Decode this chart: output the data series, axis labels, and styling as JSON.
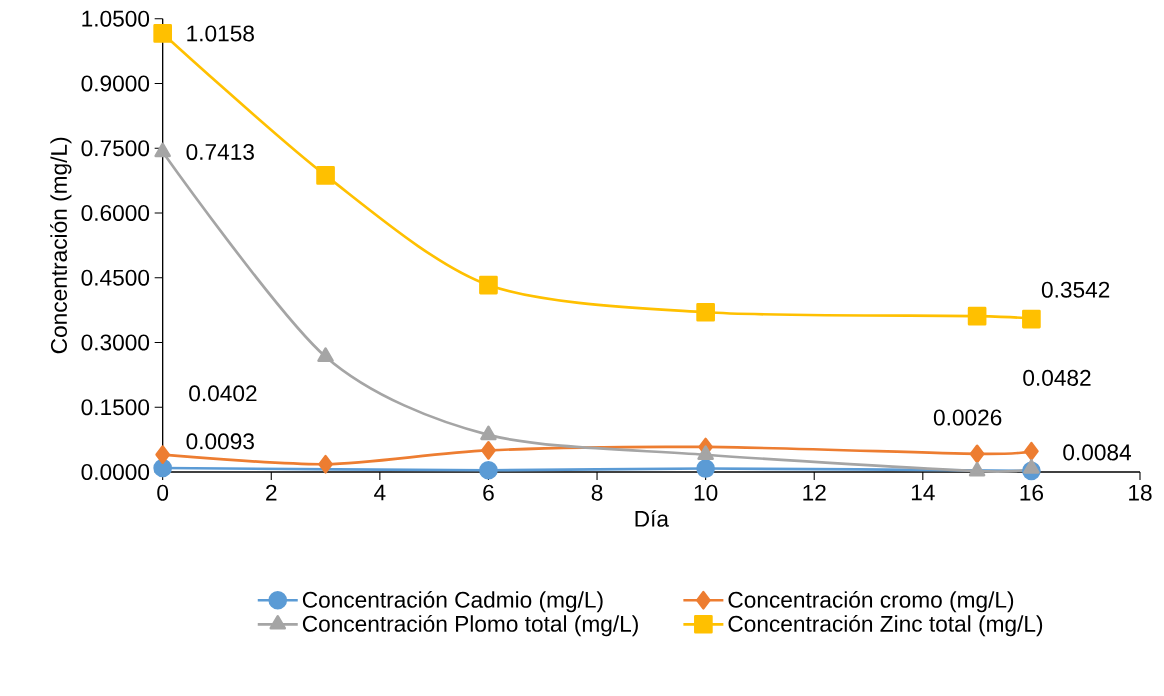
{
  "chart_data": {
    "type": "line",
    "xlabel": "Día",
    "ylabel": "Concentración (mg/L)",
    "x": [
      0,
      3,
      6,
      10,
      15,
      16
    ],
    "series": [
      {
        "name": "Concentración Cadmio (mg/L)",
        "color": "#5b9bd5",
        "marker": "circle",
        "values": [
          0.0093,
          null,
          0.004,
          0.008,
          null,
          0.0026
        ],
        "value_labels": [
          "0.0093",
          null,
          null,
          null,
          null,
          "0.0026"
        ]
      },
      {
        "name": "Concentración cromo (mg/L)",
        "color": "#ed7d31",
        "marker": "diamond",
        "values": [
          0.0402,
          0.018,
          0.05,
          0.058,
          0.042,
          0.0482
        ],
        "value_labels": [
          "0.0402",
          null,
          null,
          null,
          null,
          "0.0482"
        ]
      },
      {
        "name": "Concentración Plomo total (mg/L)",
        "color": "#a5a5a5",
        "marker": "triangle",
        "values": [
          0.7413,
          0.267,
          0.086,
          0.04,
          0.002,
          0.0084
        ],
        "value_labels": [
          "0.7413",
          null,
          null,
          null,
          null,
          "0.0084"
        ]
      },
      {
        "name": "Concentración Zinc total (mg/L)",
        "color": "#ffc000",
        "marker": "square",
        "values": [
          1.0158,
          0.687,
          0.433,
          0.37,
          0.361,
          0.3542
        ],
        "value_labels": [
          "1.0158",
          null,
          null,
          null,
          null,
          "0.3542"
        ]
      }
    ],
    "xlim": [
      0,
      18
    ],
    "xticks": [
      0,
      2,
      4,
      6,
      8,
      10,
      12,
      14,
      16,
      18
    ],
    "ylim": [
      0,
      1.05
    ],
    "yticks": [
      {
        "value": 0,
        "label": "0.0000"
      },
      {
        "value": 0.15,
        "label": "0.1500"
      },
      {
        "value": 0.3,
        "label": "0.3000"
      },
      {
        "value": 0.45,
        "label": "0.4500"
      },
      {
        "value": 0.6,
        "label": "0.6000"
      },
      {
        "value": 0.75,
        "label": "0.7500"
      },
      {
        "value": 0.9,
        "label": "0.9000"
      },
      {
        "value": 1.05,
        "label": "1.0500"
      }
    ],
    "grid": false,
    "legend": "bottom",
    "line_style": "solid"
  }
}
